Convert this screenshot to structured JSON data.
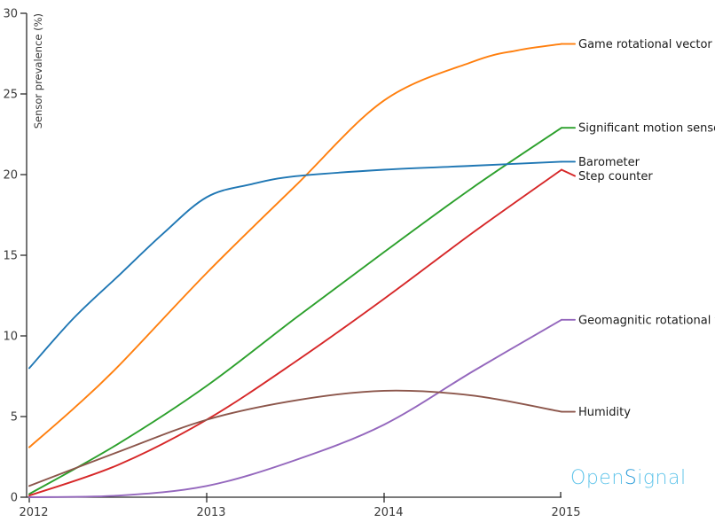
{
  "chart_data": {
    "type": "line",
    "title": "",
    "xlabel": "",
    "ylabel": "Sensor prevalence (%)",
    "xlim": [
      2012,
      2015
    ],
    "ylim": [
      0,
      30
    ],
    "x_ticks": [
      "2012",
      "2013",
      "2014",
      "2015"
    ],
    "x_tick_values": [
      2012,
      2013,
      2014,
      2015
    ],
    "y_ticks": [
      0,
      5,
      10,
      15,
      20,
      25,
      30
    ],
    "grid": false,
    "legend_position": "end-of-line-labels",
    "axis_color": "#2b2b2b",
    "series": [
      {
        "name": "Game rotational vector",
        "color": "#ff7f0e",
        "label_offset_y": 0,
        "points": [
          [
            2012,
            3.1
          ],
          [
            2012.25,
            5.5
          ],
          [
            2012.5,
            8.1
          ],
          [
            2013,
            13.9
          ],
          [
            2013.5,
            19.3
          ],
          [
            2014,
            24.6
          ],
          [
            2014.5,
            27.0
          ],
          [
            2014.75,
            27.7
          ],
          [
            2015,
            28.1
          ]
        ]
      },
      {
        "name": "Significant motion sensor",
        "color": "#2ca02c",
        "label_offset_y": 0,
        "points": [
          [
            2012,
            0.2
          ],
          [
            2012.5,
            3.3
          ],
          [
            2013,
            6.9
          ],
          [
            2013.5,
            11.1
          ],
          [
            2014,
            15.2
          ],
          [
            2014.5,
            19.2
          ],
          [
            2015,
            22.9
          ]
        ]
      },
      {
        "name": "Barometer",
        "color": "#1f77b4",
        "label_offset_y": 0,
        "points": [
          [
            2012,
            8.0
          ],
          [
            2012.25,
            11.1
          ],
          [
            2012.5,
            13.7
          ],
          [
            2012.75,
            16.3
          ],
          [
            2013,
            18.6
          ],
          [
            2013.25,
            19.4
          ],
          [
            2013.5,
            19.9
          ],
          [
            2014,
            20.3
          ],
          [
            2014.5,
            20.55
          ],
          [
            2015,
            20.8
          ]
        ]
      },
      {
        "name": "Step counter",
        "color": "#d62728",
        "label_offset_y": 7,
        "points": [
          [
            2012,
            0.1
          ],
          [
            2012.5,
            2.0
          ],
          [
            2013,
            4.8
          ],
          [
            2013.5,
            8.4
          ],
          [
            2014,
            12.3
          ],
          [
            2014.5,
            16.4
          ],
          [
            2015,
            20.3
          ]
        ]
      },
      {
        "name": "Geomagnitic rotational vector",
        "color": "#9467bd",
        "label_offset_y": 0,
        "points": [
          [
            2012,
            0.0
          ],
          [
            2012.5,
            0.1
          ],
          [
            2013,
            0.7
          ],
          [
            2013.5,
            2.3
          ],
          [
            2014,
            4.5
          ],
          [
            2014.5,
            7.8
          ],
          [
            2015,
            11.0
          ]
        ]
      },
      {
        "name": "Humidity",
        "color": "#8c564b",
        "label_offset_y": 0,
        "points": [
          [
            2012,
            0.7
          ],
          [
            2012.5,
            2.8
          ],
          [
            2013,
            4.8
          ],
          [
            2013.5,
            6.0
          ],
          [
            2014,
            6.6
          ],
          [
            2014.5,
            6.3
          ],
          [
            2015,
            5.3
          ]
        ]
      }
    ]
  },
  "watermark": {
    "text": "OpenSignal",
    "part1": "Open",
    "part2": "S",
    "part3": "ignal",
    "color_light": "#5fc4ea",
    "color_dark": "#2b9cd8"
  }
}
